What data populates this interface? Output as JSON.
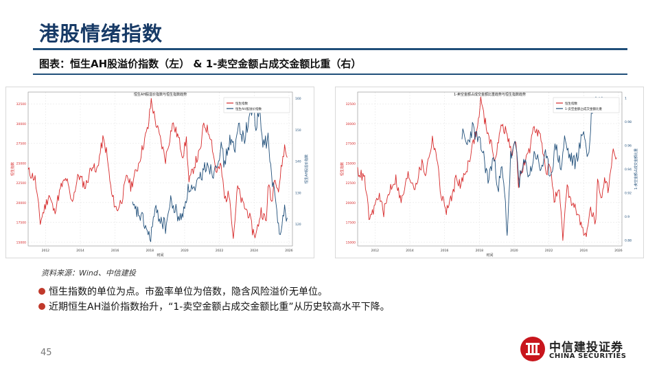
{
  "page": {
    "title": "港股情绪指数",
    "subtitle": "图表：恒生AH股溢价指数（左） & 1-卖空金额占成交金额比重（右）",
    "source": "资料来源：Wind、中信建投",
    "bullets": [
      "恒生指数的单位为点。市盈率单位为倍数，隐含风险溢价无单位。",
      "近期恒生AH溢价指数抬升，“1-卖空金额占成交金额比重”从历史较高水平下降。"
    ],
    "page_number": "45",
    "logo": {
      "name_cn": "中信建投证券",
      "name_en": "CHINA SECURITIES"
    }
  },
  "colors": {
    "red_series": "#d62728",
    "blue_series": "#1f4e79",
    "title_blue": "#173a66",
    "bullet_dot": "#c0392b",
    "logo_red": "#c8161d"
  },
  "chart_data": [
    {
      "type": "line",
      "title": "恒生AH股溢价指数与恒生指数趋势",
      "xlabel": "时间",
      "ylabel_left": "恒生指数",
      "ylabel_right": "恒生AH股溢价指数",
      "x_ticks": [
        "2012",
        "2014",
        "2016",
        "2018",
        "2020",
        "2022",
        "2024",
        "2026"
      ],
      "y_left_ticks": [
        15000,
        17500,
        20000,
        22500,
        25000,
        27500,
        30000,
        32500
      ],
      "y_right_ticks": [
        120,
        130,
        140,
        150,
        160
      ],
      "xlim": [
        2011,
        2026.2
      ],
      "ylim_left": [
        14500,
        34000
      ],
      "ylim_right": [
        113,
        162
      ],
      "legend_position": "top-right",
      "grid": true,
      "series": [
        {
          "name": "恒生指数",
          "axis": "left",
          "color": "#d62728",
          "points": [
            [
              2011.0,
              24000
            ],
            [
              2011.4,
              23000
            ],
            [
              2011.7,
              17500
            ],
            [
              2011.9,
              19000
            ],
            [
              2012.2,
              21000
            ],
            [
              2012.5,
              18800
            ],
            [
              2012.9,
              22000
            ],
            [
              2013.2,
              23000
            ],
            [
              2013.5,
              20000
            ],
            [
              2013.9,
              23500
            ],
            [
              2014.3,
              22000
            ],
            [
              2014.7,
              25000
            ],
            [
              2014.9,
              23600
            ],
            [
              2015.3,
              28000
            ],
            [
              2015.5,
              26500
            ],
            [
              2015.8,
              21000
            ],
            [
              2016.1,
              19000
            ],
            [
              2016.4,
              20500
            ],
            [
              2016.7,
              23500
            ],
            [
              2016.9,
              22000
            ],
            [
              2017.3,
              24500
            ],
            [
              2017.7,
              28000
            ],
            [
              2017.9,
              29500
            ],
            [
              2018.08,
              33000
            ],
            [
              2018.3,
              30500
            ],
            [
              2018.6,
              28000
            ],
            [
              2018.9,
              25500
            ],
            [
              2019.3,
              30000
            ],
            [
              2019.6,
              28500
            ],
            [
              2019.9,
              26000
            ],
            [
              2020.1,
              28000
            ],
            [
              2020.25,
              22500
            ],
            [
              2020.6,
              25000
            ],
            [
              2020.9,
              26500
            ],
            [
              2021.1,
              30000
            ],
            [
              2021.5,
              28500
            ],
            [
              2021.8,
              24000
            ],
            [
              2022.1,
              24500
            ],
            [
              2022.3,
              20500
            ],
            [
              2022.6,
              21000
            ],
            [
              2022.8,
              15500
            ],
            [
              2023.05,
              22000
            ],
            [
              2023.3,
              20000
            ],
            [
              2023.7,
              18500
            ],
            [
              2023.9,
              16500
            ],
            [
              2024.1,
              15800
            ],
            [
              2024.4,
              19000
            ],
            [
              2024.7,
              17500
            ],
            [
              2024.8,
              22500
            ],
            [
              2025.0,
              20000
            ],
            [
              2025.2,
              23500
            ],
            [
              2025.4,
              21500
            ],
            [
              2025.6,
              25000
            ],
            [
              2025.75,
              27000
            ],
            [
              2025.9,
              25700
            ]
          ]
        },
        {
          "name": "恒生AH股溢价指数",
          "axis": "right",
          "color": "#1f4e79",
          "points": [
            [
              2017.0,
              125
            ],
            [
              2017.4,
              123
            ],
            [
              2017.7,
              120
            ],
            [
              2018.0,
              115
            ],
            [
              2018.3,
              124
            ],
            [
              2018.6,
              122
            ],
            [
              2018.9,
              119
            ],
            [
              2019.2,
              127
            ],
            [
              2019.5,
              124
            ],
            [
              2019.8,
              121
            ],
            [
              2020.1,
              129
            ],
            [
              2020.3,
              132
            ],
            [
              2020.6,
              130
            ],
            [
              2020.9,
              135
            ],
            [
              2021.1,
              137
            ],
            [
              2021.3,
              140
            ],
            [
              2021.6,
              136
            ],
            [
              2021.9,
              141
            ],
            [
              2022.1,
              144
            ],
            [
              2022.3,
              139
            ],
            [
              2022.6,
              147
            ],
            [
              2022.9,
              143
            ],
            [
              2023.1,
              152
            ],
            [
              2023.4,
              147
            ],
            [
              2023.7,
              153
            ],
            [
              2023.95,
              158
            ],
            [
              2024.1,
              150
            ],
            [
              2024.3,
              156
            ],
            [
              2024.5,
              145
            ],
            [
              2024.8,
              147
            ],
            [
              2025.0,
              135
            ],
            [
              2025.2,
              128
            ],
            [
              2025.45,
              118
            ],
            [
              2025.6,
              121
            ],
            [
              2025.75,
              124
            ],
            [
              2025.9,
              122
            ]
          ]
        }
      ]
    },
    {
      "type": "line",
      "title": "1-卖空金额占成交金额比重趋势与恒生指数趋势",
      "xlabel": "时间",
      "ylabel_left": "恒生指数",
      "ylabel_right": "1-卖空金额占成交金额比重",
      "x_ticks": [
        "2012",
        "2014",
        "2016",
        "2018",
        "2020",
        "2022",
        "2024",
        "2026"
      ],
      "y_left_ticks": [
        15000,
        17500,
        20000,
        22500,
        25000,
        27500,
        30000,
        32500
      ],
      "y_right_ticks": [
        0.88,
        0.9,
        0.92,
        0.94,
        0.96,
        0.98,
        1.0
      ],
      "xlim": [
        2011,
        2026.2
      ],
      "ylim_left": [
        14500,
        34000
      ],
      "ylim_right": [
        0.875,
        1.005
      ],
      "legend_position": "top-right",
      "grid": true,
      "series": [
        {
          "name": "恒生指数",
          "axis": "left",
          "color": "#d62728",
          "points": [
            [
              2011.0,
              24000
            ],
            [
              2011.4,
              23000
            ],
            [
              2011.7,
              17500
            ],
            [
              2011.9,
              19000
            ],
            [
              2012.2,
              21000
            ],
            [
              2012.5,
              18800
            ],
            [
              2012.9,
              22000
            ],
            [
              2013.2,
              23000
            ],
            [
              2013.5,
              20000
            ],
            [
              2013.9,
              23500
            ],
            [
              2014.3,
              22000
            ],
            [
              2014.7,
              25000
            ],
            [
              2014.9,
              23600
            ],
            [
              2015.3,
              28000
            ],
            [
              2015.5,
              26500
            ],
            [
              2015.8,
              21000
            ],
            [
              2016.1,
              19000
            ],
            [
              2016.4,
              20500
            ],
            [
              2016.7,
              23500
            ],
            [
              2016.9,
              22000
            ],
            [
              2017.3,
              24500
            ],
            [
              2017.7,
              28000
            ],
            [
              2017.9,
              29500
            ],
            [
              2018.08,
              33000
            ],
            [
              2018.3,
              30500
            ],
            [
              2018.6,
              28000
            ],
            [
              2018.9,
              25500
            ],
            [
              2019.3,
              30000
            ],
            [
              2019.6,
              28500
            ],
            [
              2019.9,
              26000
            ],
            [
              2020.1,
              28000
            ],
            [
              2020.25,
              22500
            ],
            [
              2020.6,
              25000
            ],
            [
              2020.9,
              26500
            ],
            [
              2021.1,
              30000
            ],
            [
              2021.5,
              28500
            ],
            [
              2021.8,
              24000
            ],
            [
              2022.1,
              24500
            ],
            [
              2022.3,
              20500
            ],
            [
              2022.6,
              21000
            ],
            [
              2022.8,
              15500
            ],
            [
              2023.05,
              22000
            ],
            [
              2023.3,
              20000
            ],
            [
              2023.7,
              18500
            ],
            [
              2023.9,
              16500
            ],
            [
              2024.1,
              15800
            ],
            [
              2024.4,
              19000
            ],
            [
              2024.7,
              17500
            ],
            [
              2024.8,
              22500
            ],
            [
              2025.0,
              20000
            ],
            [
              2025.2,
              23500
            ],
            [
              2025.4,
              21500
            ],
            [
              2025.6,
              25000
            ],
            [
              2025.75,
              27000
            ],
            [
              2025.9,
              25700
            ]
          ]
        },
        {
          "name": "1-卖空金额占成交金额比重",
          "axis": "right",
          "color": "#1f4e79",
          "points": [
            [
              2017.0,
              0.97
            ],
            [
              2017.3,
              0.96
            ],
            [
              2017.6,
              0.975
            ],
            [
              2017.9,
              0.965
            ],
            [
              2018.2,
              0.955
            ],
            [
              2018.5,
              0.93
            ],
            [
              2018.8,
              0.95
            ],
            [
              2019.1,
              0.925
            ],
            [
              2019.3,
              0.94
            ],
            [
              2019.5,
              0.91
            ],
            [
              2019.6,
              0.885
            ],
            [
              2019.8,
              0.95
            ],
            [
              2020.1,
              0.96
            ],
            [
              2020.3,
              0.93
            ],
            [
              2020.6,
              0.945
            ],
            [
              2020.9,
              0.935
            ],
            [
              2021.2,
              0.955
            ],
            [
              2021.5,
              0.94
            ],
            [
              2021.8,
              0.95
            ],
            [
              2022.1,
              0.935
            ],
            [
              2022.4,
              0.96
            ],
            [
              2022.7,
              0.94
            ],
            [
              2022.9,
              0.965
            ],
            [
              2023.2,
              0.95
            ],
            [
              2023.5,
              0.945
            ],
            [
              2023.8,
              0.96
            ],
            [
              2024.0,
              0.975
            ],
            [
              2024.2,
              0.95
            ],
            [
              2024.35,
              0.96
            ],
            [
              2024.45,
              0.99
            ],
            [
              2024.6,
              0.997
            ],
            [
              2024.9,
              0.998
            ],
            [
              2025.2,
              0.997
            ],
            [
              2025.5,
              0.998
            ],
            [
              2025.9,
              0.997
            ]
          ]
        }
      ]
    }
  ]
}
